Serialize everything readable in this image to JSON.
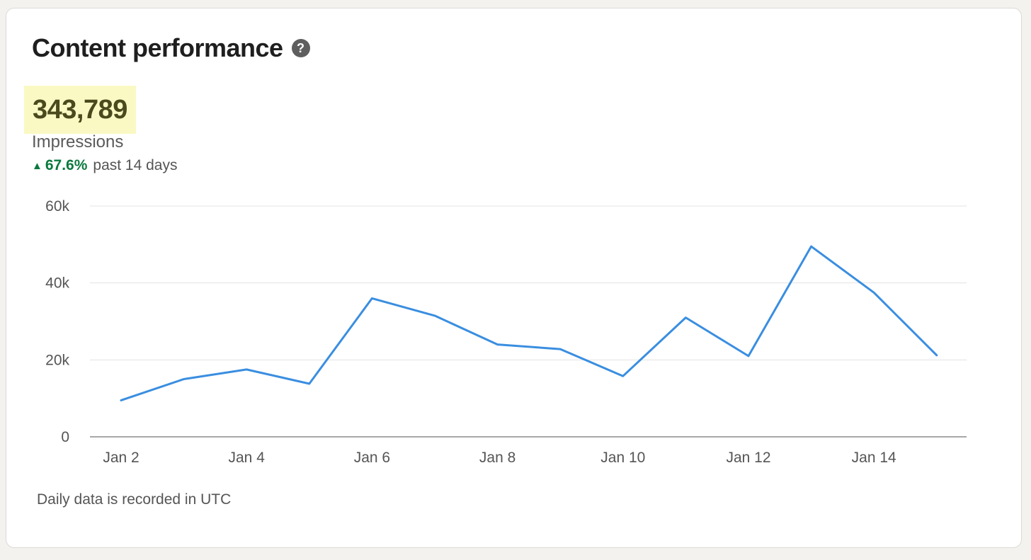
{
  "header": {
    "title": "Content performance",
    "help_icon": "question-circle-icon"
  },
  "metric": {
    "value": "343,789",
    "label": "Impressions",
    "change_arrow": "▲",
    "change": "67.6%",
    "period": "past 14 days",
    "change_color": "#0a7a3e",
    "highlight_color": "#faf9c4"
  },
  "chart_data": {
    "type": "line",
    "x": [
      "Jan 2",
      "Jan 3",
      "Jan 4",
      "Jan 5",
      "Jan 6",
      "Jan 7",
      "Jan 8",
      "Jan 9",
      "Jan 10",
      "Jan 11",
      "Jan 12",
      "Jan 13",
      "Jan 14",
      "Jan 15"
    ],
    "series": [
      {
        "values": [
          9500,
          15000,
          17500,
          13800,
          36000,
          31500,
          24000,
          22800,
          15800,
          31000,
          21000,
          49500,
          37500,
          21200
        ],
        "color": "#3a8ee0"
      }
    ],
    "x_tick_labels": [
      "Jan 2",
      "Jan 4",
      "Jan 6",
      "Jan 8",
      "Jan 10",
      "Jan 12",
      "Jan 14"
    ],
    "y_tick_values": [
      0,
      20000,
      40000,
      60000
    ],
    "y_tick_labels": [
      "0",
      "20k",
      "40k",
      "60k"
    ],
    "ylim": [
      0,
      60000
    ],
    "grid": true
  },
  "footer": {
    "note": "Daily data is recorded in UTC"
  }
}
